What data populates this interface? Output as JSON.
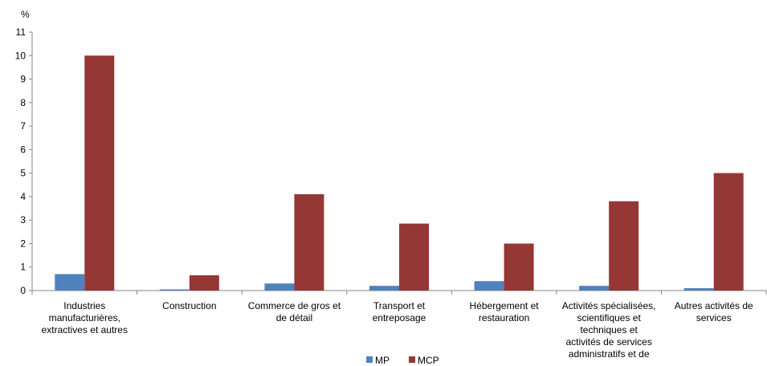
{
  "chart_data": {
    "type": "bar",
    "y_unit_label": "%",
    "ylim": [
      0,
      11
    ],
    "yticks": [
      0,
      1,
      2,
      3,
      4,
      5,
      6,
      7,
      8,
      9,
      10,
      11
    ],
    "grid": false,
    "legend_position": "bottom",
    "categories": [
      [
        "Industries",
        "manufacturières,",
        "extractives et autres"
      ],
      [
        "Construction"
      ],
      [
        "Commerce de gros et",
        "de détail"
      ],
      [
        "Transport et",
        "entreposage"
      ],
      [
        "Hébergement et",
        "restauration"
      ],
      [
        "Activités spécialisées,",
        "scientifiques et",
        "techniques et",
        "activités de services",
        "administratifs et de"
      ],
      [
        "Autres activités de",
        "services"
      ]
    ],
    "series": [
      {
        "name": "MP",
        "color": "#4F81BD",
        "values": [
          0.7,
          0.05,
          0.3,
          0.2,
          0.4,
          0.2,
          0.1
        ]
      },
      {
        "name": "MCP",
        "color": "#953735",
        "values": [
          10.0,
          0.65,
          4.1,
          2.85,
          2.0,
          3.8,
          5.0
        ]
      }
    ]
  }
}
